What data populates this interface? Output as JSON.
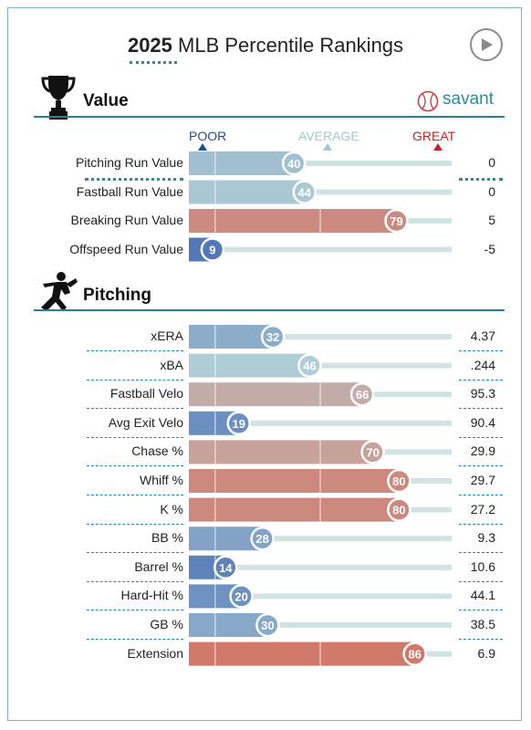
{
  "header": {
    "year": "2025",
    "title": "MLB Percentile Rankings",
    "play_icon": "play-icon"
  },
  "value_section": {
    "title": "Value",
    "icon": "trophy-icon",
    "brand": "savant",
    "brand_icon": "baseball-icon"
  },
  "legend": {
    "poor": "POOR",
    "average": "AVERAGE",
    "great": "GREAT",
    "poor_color": "#1f4e9a",
    "average_color": "#9ec9cf",
    "great_color": "#cc1f1f"
  },
  "pitching_section": {
    "title": "Pitching",
    "icon": "pitcher-icon"
  },
  "chart_data": {
    "type": "bar",
    "xlim": [
      0,
      100
    ],
    "groups": [
      {
        "name": "Value",
        "rows": [
          {
            "label": "Pitching Run Value",
            "percentile": 40,
            "stat": "0"
          },
          {
            "label": "Fastball Run Value",
            "percentile": 44,
            "stat": "0"
          },
          {
            "label": "Breaking Run Value",
            "percentile": 79,
            "stat": "5"
          },
          {
            "label": "Offspeed Run Value",
            "percentile": 9,
            "stat": "-5"
          }
        ]
      },
      {
        "name": "Pitching",
        "rows": [
          {
            "label": "xERA",
            "percentile": 32,
            "stat": "4.37"
          },
          {
            "label": "xBA",
            "percentile": 46,
            "stat": ".244"
          },
          {
            "label": "Fastball Velo",
            "percentile": 66,
            "stat": "95.3"
          },
          {
            "label": "Avg Exit Velo",
            "percentile": 19,
            "stat": "90.4"
          },
          {
            "label": "Chase %",
            "percentile": 70,
            "stat": "29.9"
          },
          {
            "label": "Whiff %",
            "percentile": 80,
            "stat": "29.7"
          },
          {
            "label": "K %",
            "percentile": 80,
            "stat": "27.2"
          },
          {
            "label": "BB %",
            "percentile": 28,
            "stat": "9.3"
          },
          {
            "label": "Barrel %",
            "percentile": 14,
            "stat": "10.6"
          },
          {
            "label": "Hard-Hit %",
            "percentile": 20,
            "stat": "44.1"
          },
          {
            "label": "GB %",
            "percentile": 30,
            "stat": "38.5"
          },
          {
            "label": "Extension",
            "percentile": 86,
            "stat": "6.9"
          }
        ]
      }
    ]
  }
}
